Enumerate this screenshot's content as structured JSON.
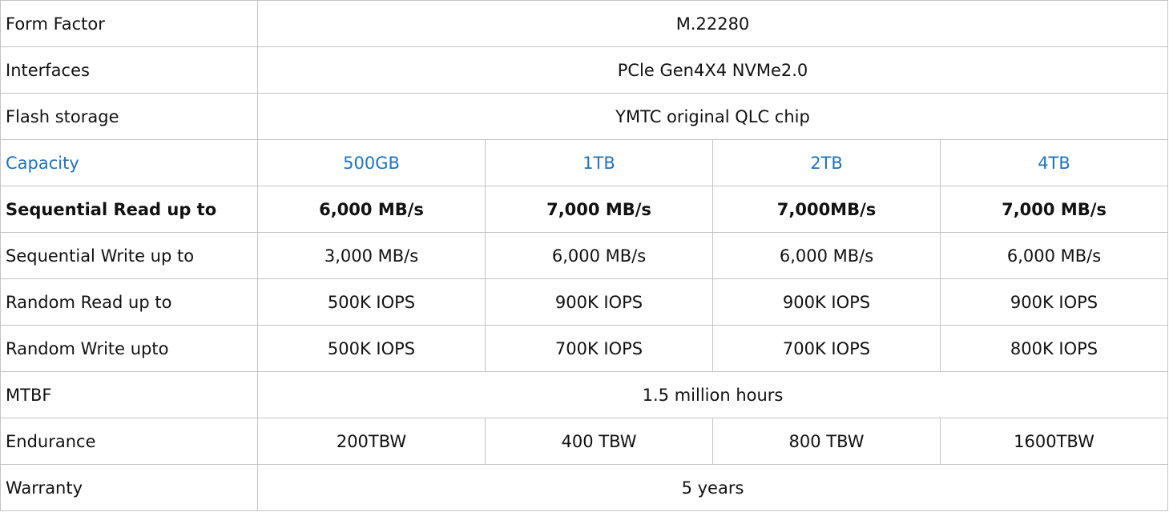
{
  "table": {
    "rows": [
      {
        "label": "Form Factor",
        "values": [
          "M.22280"
        ]
      },
      {
        "label": "Interfaces",
        "values": [
          "PCle Gen4X4 NVMe2.0"
        ]
      },
      {
        "label": "Flash storage",
        "values": [
          "YMTC original QLC chip"
        ]
      },
      {
        "label": "Capacity",
        "values": [
          "500GB",
          "1TB",
          "2TB",
          "4TB"
        ]
      },
      {
        "label": "Sequential Read up to",
        "values": [
          "6,000 MB/s",
          "7,000 MB/s",
          "7,000MB/s",
          "7,000 MB/s"
        ]
      },
      {
        "label": "Sequential Write up to",
        "values": [
          "3,000 MB/s",
          "6,000 MB/s",
          "6,000 MB/s",
          "6,000 MB/s"
        ]
      },
      {
        "label": "Random Read up to",
        "values": [
          "500K IOPS",
          "900K IOPS",
          "900K IOPS",
          "900K IOPS"
        ]
      },
      {
        "label": "Random Write upto",
        "values": [
          "500K IOPS",
          "700K IOPS",
          "700K IOPS",
          "800K IOPS"
        ]
      },
      {
        "label": "MTBF",
        "values": [
          "1.5 million hours"
        ]
      },
      {
        "label": "Endurance",
        "values": [
          "200TBW",
          "400 TBW",
          "800 TBW",
          "1600TBW"
        ]
      },
      {
        "label": "Warranty",
        "values": [
          "5 years"
        ]
      }
    ]
  }
}
